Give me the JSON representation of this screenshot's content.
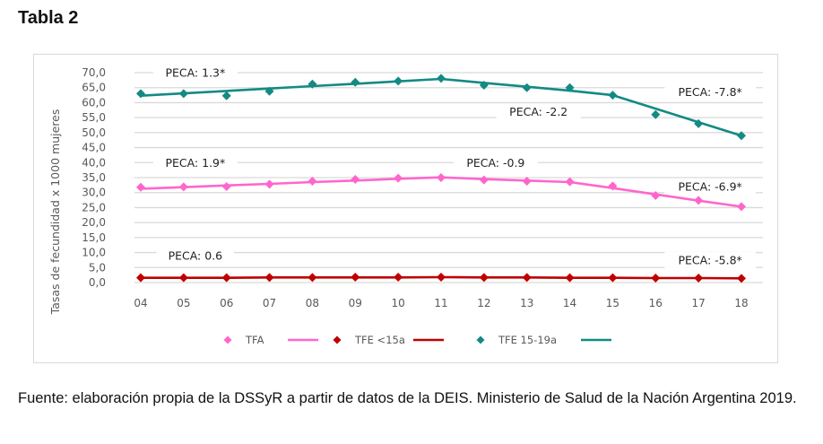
{
  "title": "Tabla 2",
  "source_note": "Fuente: elaboración propia de la DSSyR a partir de datos de la DEIS. Ministerio de Salud de la Nación Argentina 2019.",
  "chart_data": {
    "type": "line",
    "title": "",
    "xlabel": "",
    "ylabel": "Tasas de fecundidad x 1000 mujeres",
    "x": [
      "04",
      "05",
      "06",
      "07",
      "08",
      "09",
      "10",
      "11",
      "12",
      "13",
      "14",
      "15",
      "16",
      "17",
      "18"
    ],
    "ylim": [
      0,
      70
    ],
    "yticks": [
      "0,0",
      "5,0",
      "10,0",
      "15,0",
      "20,0",
      "25,0",
      "30,0",
      "35,0",
      "40,0",
      "45,0",
      "50,0",
      "55,0",
      "60,0",
      "65,0",
      "70,0"
    ],
    "ytick_values": [
      0,
      5,
      10,
      15,
      20,
      25,
      30,
      35,
      40,
      45,
      50,
      55,
      60,
      65,
      70
    ],
    "grid": true,
    "legend_position": "bottom",
    "series": [
      {
        "name": "TFA",
        "color": "#ff66cc",
        "values": [
          31.8,
          31.9,
          32.0,
          32.8,
          33.8,
          34.4,
          34.8,
          35.0,
          34.2,
          33.8,
          33.6,
          32.2,
          29.0,
          27.4,
          25.3
        ],
        "trend": [
          31.3,
          31.8,
          32.4,
          32.9,
          33.5,
          34.0,
          34.6,
          35.1,
          34.5,
          34.0,
          33.5,
          31.5,
          29.4,
          27.3,
          25.3
        ]
      },
      {
        "name": "TFE <15a",
        "color": "#c00000",
        "values": [
          1.6,
          1.6,
          1.6,
          1.7,
          1.7,
          1.8,
          1.8,
          1.8,
          1.7,
          1.7,
          1.6,
          1.6,
          1.5,
          1.5,
          1.4
        ],
        "trend": [
          1.6,
          1.6,
          1.6,
          1.7,
          1.7,
          1.7,
          1.7,
          1.8,
          1.7,
          1.7,
          1.6,
          1.6,
          1.5,
          1.5,
          1.4
        ]
      },
      {
        "name": "TFE 15-19a",
        "color": "#138a84",
        "values": [
          63.0,
          63.0,
          62.3,
          63.8,
          66.2,
          66.8,
          67.2,
          68.1,
          65.8,
          65.0,
          65.0,
          62.5,
          56.0,
          53.0,
          49.0
        ],
        "trend": [
          62.3,
          63.1,
          63.9,
          64.7,
          65.5,
          66.3,
          67.1,
          67.9,
          66.6,
          65.3,
          64.0,
          62.5,
          58.0,
          53.5,
          49.0
        ]
      }
    ],
    "annotations": [
      {
        "text": "PECA: 1.3*",
        "series": "TFE 15-19a",
        "segment": "2004-2011",
        "near_x": "05",
        "near_y": 70
      },
      {
        "text": "PECA: -2.2",
        "series": "TFE 15-19a",
        "segment": "2011-2015",
        "near_x": "13",
        "near_y": 57
      },
      {
        "text": "PECA: -7.8*",
        "series": "TFE 15-19a",
        "segment": "2015-2018",
        "near_x": "17",
        "near_y": 63.5
      },
      {
        "text": "PECA: 1.9*",
        "series": "TFA",
        "segment": "2004-2011",
        "near_x": "05",
        "near_y": 40
      },
      {
        "text": "PECA: -0.9",
        "series": "TFA",
        "segment": "2011-2015",
        "near_x": "12",
        "near_y": 40
      },
      {
        "text": "PECA: -6.9*",
        "series": "TFA",
        "segment": "2015-2018",
        "near_x": "17",
        "near_y": 32
      },
      {
        "text": "PECA: 0.6",
        "series": "TFE <15a",
        "segment": "2004-2015",
        "near_x": "05",
        "near_y": 9
      },
      {
        "text": "PECA: -5.8*",
        "series": "TFE <15a",
        "segment": "2015-2018",
        "near_x": "17",
        "near_y": 7.5
      }
    ]
  }
}
